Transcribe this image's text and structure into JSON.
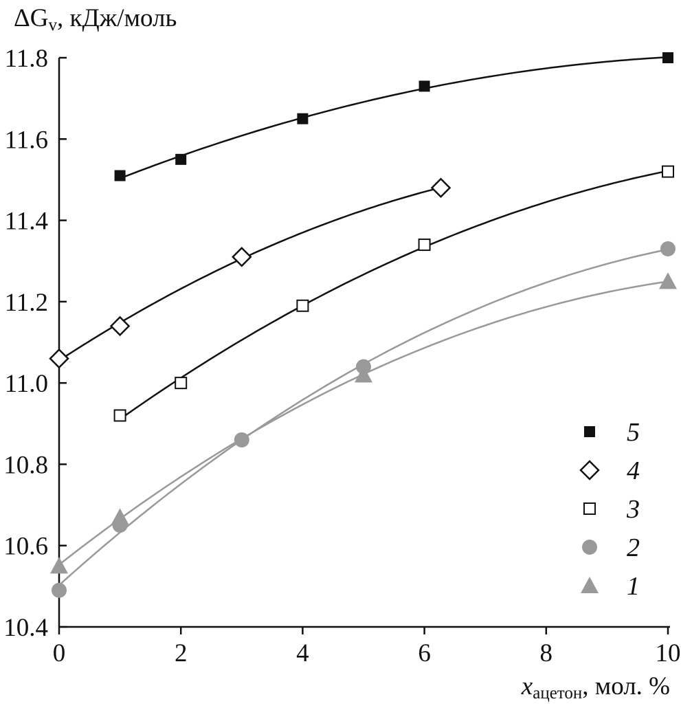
{
  "chart_data": {
    "type": "scatter",
    "title": "",
    "ylabel": {
      "prefix": "ΔG",
      "sub": "v",
      "suffix": ", кДж/моль"
    },
    "xlabel": {
      "prefix": "x",
      "sub": "ацетон",
      "suffix": ", мол. %"
    },
    "xlim": [
      0,
      10
    ],
    "ylim": [
      10.4,
      11.8
    ],
    "x_ticks": [
      "0",
      "2",
      "4",
      "6",
      "8",
      "10"
    ],
    "y_ticks": [
      "10.4",
      "10.6",
      "10.8",
      "11.0",
      "11.2",
      "11.4",
      "11.6",
      "11.8"
    ],
    "grid": false,
    "legend_position": "bottom-right",
    "series": [
      {
        "name": "5",
        "marker": "square-filled",
        "color": "#111111",
        "x": [
          1,
          2,
          4,
          6,
          10
        ],
        "y": [
          11.51,
          11.55,
          11.65,
          11.73,
          11.8
        ]
      },
      {
        "name": "4",
        "marker": "diamond-open",
        "color": "#111111",
        "x": [
          0,
          1,
          3,
          6.27
        ],
        "y": [
          11.06,
          11.14,
          11.31,
          11.48
        ]
      },
      {
        "name": "3",
        "marker": "square-open",
        "color": "#111111",
        "x": [
          1,
          2,
          4,
          6,
          10
        ],
        "y": [
          10.92,
          11.0,
          11.19,
          11.34,
          11.52
        ]
      },
      {
        "name": "2",
        "marker": "circle-filled",
        "color": "#999999",
        "x": [
          0,
          1,
          3,
          5,
          10
        ],
        "y": [
          10.49,
          10.65,
          10.86,
          11.04,
          11.33
        ]
      },
      {
        "name": "1",
        "marker": "triangle-filled",
        "color": "#999999",
        "x": [
          0,
          1,
          5,
          10
        ],
        "y": [
          10.55,
          10.67,
          11.02,
          11.25
        ]
      }
    ]
  }
}
